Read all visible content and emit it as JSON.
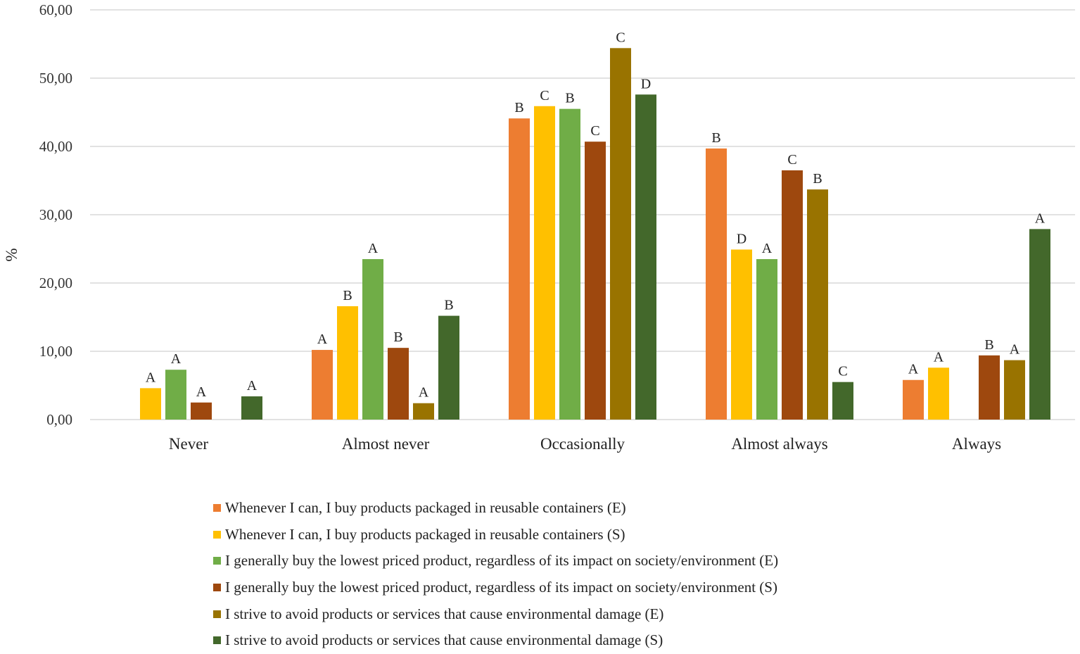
{
  "chart_data": {
    "type": "bar",
    "title": "",
    "xlabel": "",
    "ylabel": "%",
    "ylim": [
      0,
      60
    ],
    "yticks": [
      "0,00",
      "10,00",
      "20,00",
      "30,00",
      "40,00",
      "50,00",
      "60,00"
    ],
    "categories": [
      "Never",
      "Almost never",
      "Occasionally",
      "Almost always",
      "Always"
    ],
    "series": [
      {
        "name": "Whenever I can, I buy products packaged in reusable containers (E)",
        "color": "#ED7D31",
        "values": [
          0,
          10.2,
          44.1,
          39.7,
          5.8
        ],
        "labels": [
          "",
          "A",
          "B",
          "B",
          "A"
        ]
      },
      {
        "name": "Whenever I can, I buy products packaged in reusable containers (S)",
        "color": "#FFC000",
        "values": [
          4.6,
          16.6,
          45.9,
          24.9,
          7.6
        ],
        "labels": [
          "A",
          "B",
          "C",
          "D",
          "A"
        ]
      },
      {
        "name": "I generally buy the lowest priced product, regardless of its impact on society/environment (E)",
        "color": "#70AD47",
        "values": [
          7.3,
          23.5,
          45.5,
          23.5,
          0
        ],
        "labels": [
          "A",
          "A",
          "B",
          "A",
          ""
        ]
      },
      {
        "name": "I generally buy the lowest priced product, regardless of its impact on society/environment (S)",
        "color": "#9E480E",
        "values": [
          2.5,
          10.5,
          40.7,
          36.5,
          9.4
        ],
        "labels": [
          "A",
          "B",
          "C",
          "C",
          "B"
        ]
      },
      {
        "name": "I strive to avoid products or services that cause environmental damage (E)",
        "color": "#997300",
        "values": [
          0,
          2.4,
          54.4,
          33.7,
          8.7
        ],
        "labels": [
          "",
          "A",
          "C",
          "B",
          "A"
        ]
      },
      {
        "name": "I strive to avoid products or services that cause environmental damage (S)",
        "color": "#43682B",
        "values": [
          3.4,
          15.2,
          47.6,
          5.5,
          27.9
        ],
        "labels": [
          "A",
          "B",
          "D",
          "C",
          "A"
        ]
      }
    ]
  }
}
